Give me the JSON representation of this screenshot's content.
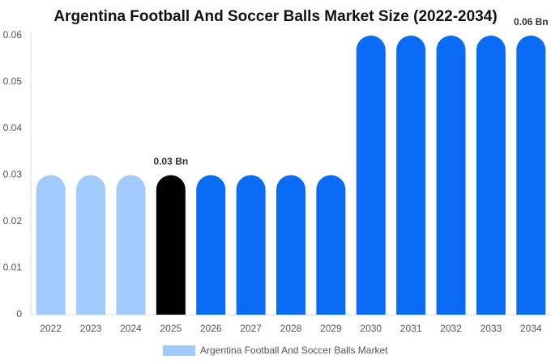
{
  "chart_data": {
    "type": "bar",
    "title": "Argentina Football And Soccer Balls Market Size (2022-2034)",
    "categories": [
      "2022",
      "2023",
      "2024",
      "2025",
      "2026",
      "2027",
      "2028",
      "2029",
      "2030",
      "2031",
      "2032",
      "2033",
      "2034"
    ],
    "series": [
      {
        "name": "Argentina Football And Soccer Balls Market",
        "color": "#a0cbfb",
        "colors": [
          "#a0cbfb",
          "#a0cbfb",
          "#a0cbfb",
          "#000000",
          "#0a6cf5",
          "#0a6cf5",
          "#0a6cf5",
          "#0a6cf5",
          "#0a6cf5",
          "#0a6cf5",
          "#0a6cf5",
          "#0a6cf5",
          "#0a6cf5"
        ],
        "values": [
          0.03,
          0.03,
          0.03,
          0.03,
          0.03,
          0.03,
          0.03,
          0.03,
          0.06,
          0.06,
          0.06,
          0.06,
          0.06
        ],
        "value_labels": [
          null,
          null,
          null,
          "0.03 Bn",
          null,
          null,
          null,
          null,
          null,
          null,
          null,
          null,
          "0.06 Bn"
        ]
      }
    ],
    "ylim": [
      0,
      0.06
    ],
    "yticks": [
      0,
      0.01,
      0.02,
      0.03,
      0.04,
      0.05,
      0.06
    ],
    "grid": false
  }
}
